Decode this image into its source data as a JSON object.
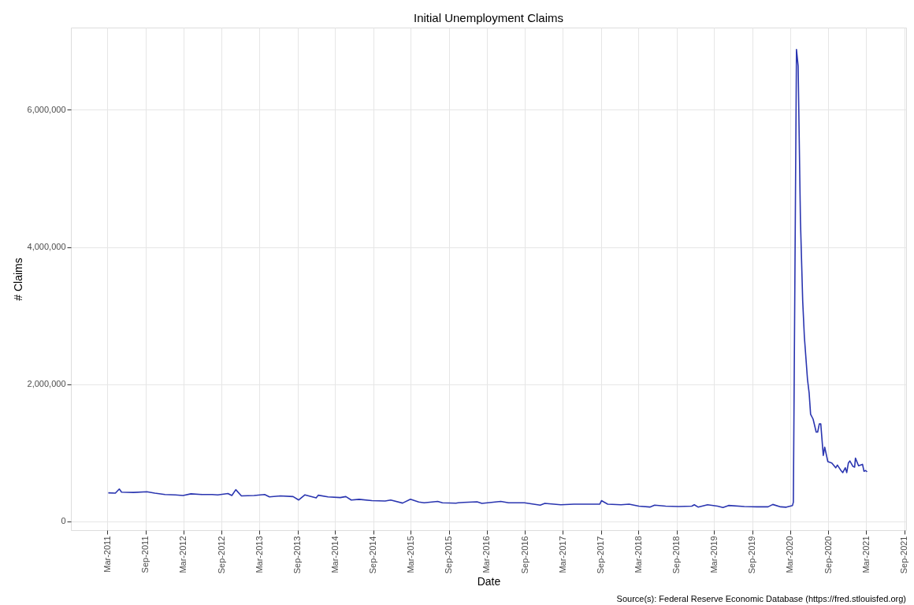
{
  "chart_data": {
    "type": "line",
    "title": "Initial Unemployment Claims",
    "xlabel": "Date",
    "ylabel": "# Claims",
    "annotations": [
      "Source(s): Federal Reserve Economic Database (https://fred.stlouisfed.org)"
    ],
    "series": [
      {
        "color": "#2a35b0",
        "x": [
          "2011-03-05",
          "2011-04-08",
          "2011-04-27",
          "2011-05-08",
          "2011-07-04",
          "2011-09-07",
          "2011-10-15",
          "2011-12-03",
          "2012-01-22",
          "2012-02-28",
          "2012-04-06",
          "2012-05-29",
          "2012-07-17",
          "2012-08-13",
          "2012-10-01",
          "2012-10-20",
          "2012-11-08",
          "2012-12-05",
          "2013-02-04",
          "2013-03-27",
          "2013-04-19",
          "2013-06-11",
          "2013-08-11",
          "2013-09-07",
          "2013-10-07",
          "2013-11-30",
          "2013-12-10",
          "2014-01-26",
          "2014-03-26",
          "2014-04-22",
          "2014-05-18",
          "2014-06-25",
          "2014-08-25",
          "2014-10-28",
          "2014-11-24",
          "2015-01-20",
          "2015-02-27",
          "2015-04-08",
          "2015-05-04",
          "2015-07-08",
          "2015-07-31",
          "2015-10-04",
          "2015-10-15",
          "2015-11-11",
          "2016-01-14",
          "2016-02-06",
          "2016-05-07",
          "2016-06-14",
          "2016-08-29",
          "2016-11-13",
          "2016-12-05",
          "2017-02-20",
          "2017-04-24",
          "2017-06-27",
          "2017-08-27",
          "2017-09-04",
          "2017-10-04",
          "2017-12-07",
          "2018-01-15",
          "2018-03-03",
          "2018-04-25",
          "2018-05-18",
          "2018-07-10",
          "2018-09-10",
          "2018-11-13",
          "2018-11-25",
          "2018-12-13",
          "2019-01-28",
          "2019-03-17",
          "2019-04-12",
          "2019-05-09",
          "2019-07-24",
          "2019-09-23",
          "2019-11-15",
          "2019-12-08",
          "2020-01-15",
          "2020-02-11",
          "2020-03-12",
          "2020-03-16",
          "2020-03-31",
          "2020-04-08",
          "2020-04-19",
          "2020-04-30",
          "2020-05-08",
          "2020-05-23",
          "2020-05-31",
          "2020-06-07",
          "2020-06-19",
          "2020-07-04",
          "2020-07-11",
          "2020-07-19",
          "2020-07-26",
          "2020-08-07",
          "2020-08-14",
          "2020-08-29",
          "2020-09-17",
          "2020-10-06",
          "2020-10-14",
          "2020-10-29",
          "2020-11-09",
          "2020-11-21",
          "2020-11-28",
          "2020-12-06",
          "2020-12-13",
          "2020-12-28",
          "2021-01-05",
          "2021-01-09",
          "2021-01-24",
          "2021-02-12",
          "2021-02-19",
          "2021-02-27",
          "2021-03-06"
        ],
        "values": [
          414000,
          410000,
          470000,
          425000,
          420000,
          430000,
          410000,
          390000,
          385000,
          375000,
          400000,
          390000,
          390000,
          385000,
          405000,
          375000,
          460000,
          370000,
          375000,
          390000,
          355000,
          370000,
          360000,
          310000,
          385000,
          340000,
          380000,
          355000,
          345000,
          360000,
          310000,
          320000,
          300000,
          295000,
          310000,
          265000,
          320000,
          280000,
          270000,
          290000,
          270000,
          264000,
          270000,
          275000,
          284000,
          260000,
          290000,
          270000,
          270000,
          235000,
          260000,
          240000,
          250000,
          250000,
          250000,
          300000,
          250000,
          240000,
          250000,
          220000,
          207000,
          235000,
          220000,
          215000,
          220000,
          240000,
          207000,
          240000,
          220000,
          200000,
          230000,
          215000,
          210000,
          210000,
          245000,
          210000,
          205000,
          230000,
          280000,
          6880000,
          6640000,
          4400000,
          3210000,
          2690000,
          2070000,
          1870000,
          1560000,
          1490000,
          1300000,
          1300000,
          1420000,
          1420000,
          960000,
          1080000,
          870000,
          850000,
          780000,
          820000,
          750000,
          710000,
          780000,
          710000,
          850000,
          880000,
          800000,
          790000,
          920000,
          810000,
          830000,
          730000,
          740000,
          720000
        ]
      }
    ],
    "xlim": [
      "2010-09-06",
      "2021-09-10"
    ],
    "xticks": [
      {
        "value": "2011-03-01",
        "label": "Mar-2011"
      },
      {
        "value": "2011-09-01",
        "label": "Sep-2011"
      },
      {
        "value": "2012-03-01",
        "label": "Mar-2012"
      },
      {
        "value": "2012-09-01",
        "label": "Sep-2012"
      },
      {
        "value": "2013-03-01",
        "label": "Mar-2013"
      },
      {
        "value": "2013-09-01",
        "label": "Sep-2013"
      },
      {
        "value": "2014-03-01",
        "label": "Mar-2014"
      },
      {
        "value": "2014-09-01",
        "label": "Sep-2014"
      },
      {
        "value": "2015-03-01",
        "label": "Mar-2015"
      },
      {
        "value": "2015-09-01",
        "label": "Sep-2015"
      },
      {
        "value": "2016-03-01",
        "label": "Mar-2016"
      },
      {
        "value": "2016-09-01",
        "label": "Sep-2016"
      },
      {
        "value": "2017-03-01",
        "label": "Mar-2017"
      },
      {
        "value": "2017-09-01",
        "label": "Sep-2017"
      },
      {
        "value": "2018-03-01",
        "label": "Mar-2018"
      },
      {
        "value": "2018-09-01",
        "label": "Sep-2018"
      },
      {
        "value": "2019-03-01",
        "label": "Mar-2019"
      },
      {
        "value": "2019-09-01",
        "label": "Sep-2019"
      },
      {
        "value": "2020-03-01",
        "label": "Mar-2020"
      },
      {
        "value": "2020-09-01",
        "label": "Sep-2020"
      },
      {
        "value": "2021-03-01",
        "label": "Mar-2021"
      },
      {
        "value": "2021-09-01",
        "label": "Sep-2021"
      }
    ],
    "ylim": [
      -130000,
      7200000
    ],
    "yticks": [
      {
        "value": 0,
        "label": "0"
      },
      {
        "value": 2000000,
        "label": "2,000,000"
      },
      {
        "value": 4000000,
        "label": "4,000,000"
      },
      {
        "value": 6000000,
        "label": "6,000,000"
      }
    ],
    "grid": true,
    "legend": false,
    "line_style": "solid",
    "marker": "none"
  }
}
